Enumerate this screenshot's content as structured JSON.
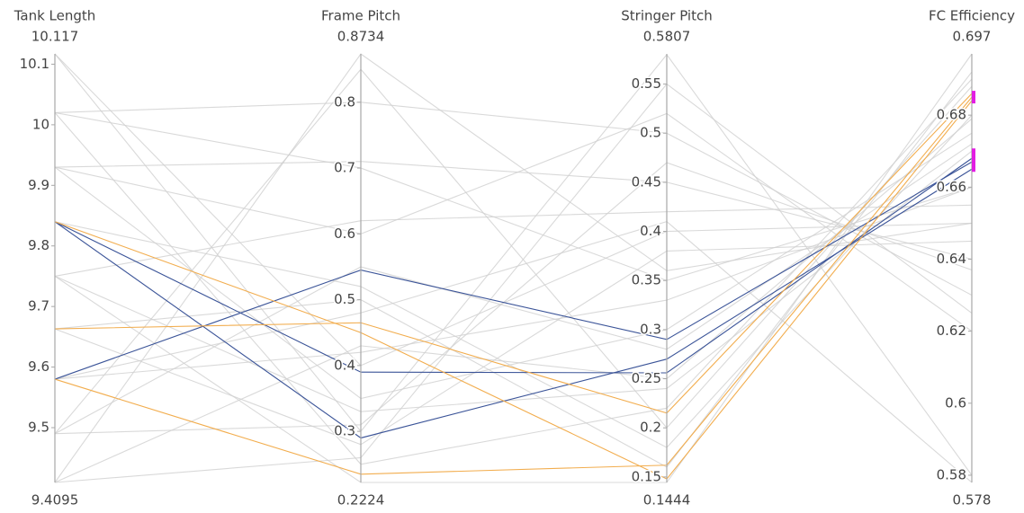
{
  "chart_data": {
    "type": "parcoords",
    "dimensions": [
      {
        "label": "Tank Length",
        "range": [
          9.4095,
          10.117
        ],
        "ticks": [
          9.5,
          9.6,
          9.7,
          9.8,
          9.9,
          10,
          10.1
        ],
        "values": [
          10.117,
          10.117,
          10.02,
          10.02,
          10.02,
          9.93,
          9.93,
          9.93,
          9.84,
          9.75,
          9.75,
          9.663,
          9.663,
          9.58,
          9.49,
          9.49,
          9.49,
          9.4095,
          9.4095,
          9.4095,
          9.75,
          9.58,
          9.58,
          9.84,
          9.84,
          9.84,
          9.663,
          9.58
        ]
      },
      {
        "label": "Frame Pitch",
        "range": [
          0.2224,
          0.8734
        ],
        "ticks": [
          0.3,
          0.4,
          0.5,
          0.6,
          0.7,
          0.8
        ],
        "values": [
          0.3,
          0.4,
          0.8,
          0.7,
          0.25,
          0.71,
          0.35,
          0.6,
          0.52,
          0.62,
          0.33,
          0.28,
          0.5,
          0.42,
          0.85,
          0.31,
          0.55,
          0.43,
          0.8734,
          0.26,
          0.2224,
          0.48,
          0.545,
          0.39,
          0.29,
          0.45,
          0.465,
          0.235
        ]
      },
      {
        "label": "Stringer Pitch",
        "range": [
          0.1444,
          0.5807
        ],
        "ticks": [
          0.15,
          0.2,
          0.25,
          0.3,
          0.35,
          0.4,
          0.45,
          0.5,
          0.55
        ],
        "values": [
          0.58,
          0.4,
          0.5,
          0.35,
          0.22,
          0.45,
          0.3,
          0.52,
          0.18,
          0.42,
          0.24,
          0.38,
          0.16,
          0.33,
          0.2,
          0.47,
          0.28,
          0.25,
          0.36,
          0.55,
          0.1444,
          0.41,
          0.29,
          0.256,
          0.27,
          0.148,
          0.215,
          0.162
        ]
      },
      {
        "label": "FC Efficiency",
        "range": [
          0.578,
          0.697
        ],
        "ticks": [
          0.58,
          0.6,
          0.62,
          0.64,
          0.66,
          0.68
        ],
        "values": [
          0.58,
          0.65,
          0.63,
          0.66,
          0.69,
          0.64,
          0.675,
          0.62,
          0.68,
          0.655,
          0.67,
          0.645,
          0.692,
          0.66,
          0.688,
          0.637,
          0.672,
          0.679,
          0.65,
          0.625,
          0.697,
          0.578,
          0.667,
          0.668,
          0.665,
          0.684,
          0.686,
          0.685
        ],
        "constraint_ranges": [
          [
            0.684,
            0.686
          ],
          [
            0.665,
            0.67
          ]
        ],
        "constraint_color": "#e21ee2"
      }
    ],
    "line_colors": [
      "#cfcfcf",
      "#cfcfcf",
      "#cfcfcf",
      "#cfcfcf",
      "#cfcfcf",
      "#cfcfcf",
      "#cfcfcf",
      "#cfcfcf",
      "#cfcfcf",
      "#cfcfcf",
      "#cfcfcf",
      "#cfcfcf",
      "#cfcfcf",
      "#cfcfcf",
      "#cfcfcf",
      "#cfcfcf",
      "#cfcfcf",
      "#cfcfcf",
      "#cfcfcf",
      "#cfcfcf",
      "#cfcfcf",
      "#cfcfcf",
      "#3b5498",
      "#3b5498",
      "#3b5498",
      "#f2ad4e",
      "#f2ad4e",
      "#f2ad4e"
    ]
  }
}
